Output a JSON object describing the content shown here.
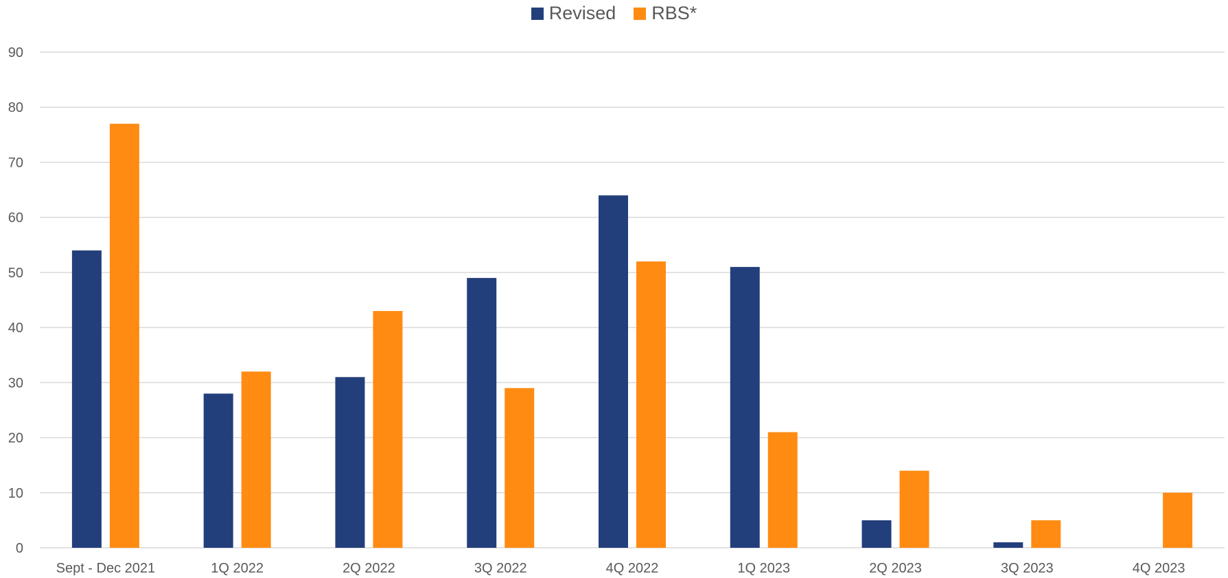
{
  "chart_data": {
    "type": "bar",
    "title": "",
    "xlabel": "",
    "ylabel": "",
    "categories": [
      "Sept - Dec 2021",
      "1Q 2022",
      "2Q 2022",
      "3Q 2022",
      "4Q 2022",
      "1Q 2023",
      "2Q 2023",
      "3Q 2023",
      "4Q 2023"
    ],
    "series": [
      {
        "name": "Revised",
        "color": "#233F7B",
        "values": [
          54,
          28,
          31,
          49,
          64,
          51,
          5,
          1,
          0
        ]
      },
      {
        "name": "RBS*",
        "color": "#FF8B13",
        "values": [
          77,
          32,
          43,
          29,
          52,
          21,
          14,
          5,
          10
        ]
      }
    ],
    "ylim": [
      0,
      90
    ],
    "yticks": [
      0,
      10,
      20,
      30,
      40,
      50,
      60,
      70,
      80,
      90
    ],
    "grid": true,
    "legend_position": "top-center",
    "gridline_color": "#D9D9D9",
    "tick_label_color": "#595959"
  }
}
